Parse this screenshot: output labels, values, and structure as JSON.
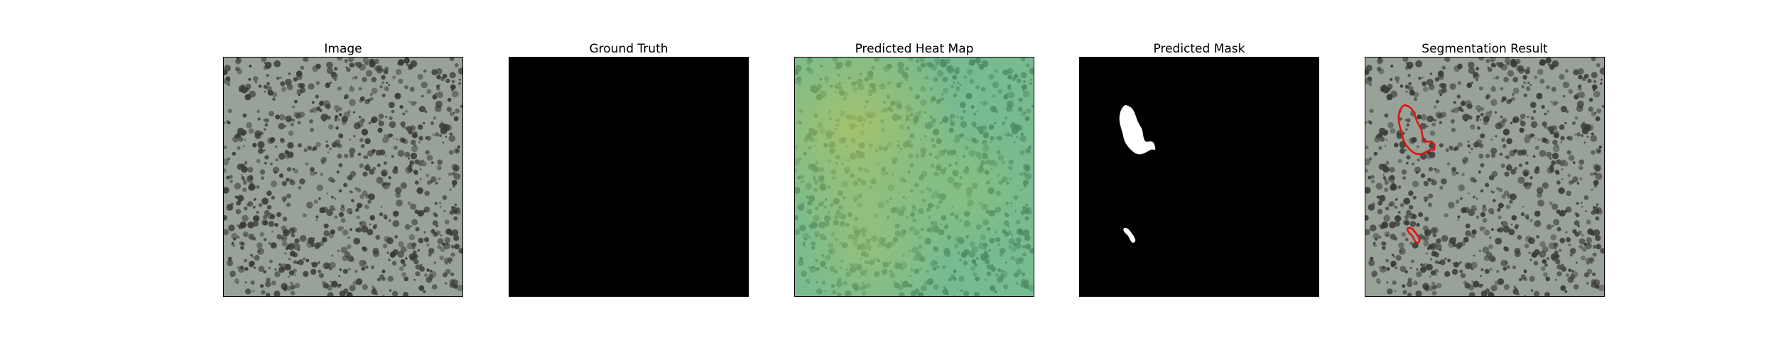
{
  "panels": [
    {
      "id": "image",
      "title": "Image"
    },
    {
      "id": "ground-truth",
      "title": "Ground Truth"
    },
    {
      "id": "heat-map",
      "title": "Predicted Heat Map"
    },
    {
      "id": "mask",
      "title": "Predicted Mask"
    },
    {
      "id": "segmentation",
      "title": "Segmentation Result"
    }
  ],
  "colors": {
    "texture_background": "#98a298",
    "texture_spot": "#3a3a38",
    "heat_overlay": "#62c88c",
    "heat_warm": "#a8c85a",
    "mask_background": "#000000",
    "mask_foreground": "#ffffff",
    "contour": "#e01010"
  }
}
